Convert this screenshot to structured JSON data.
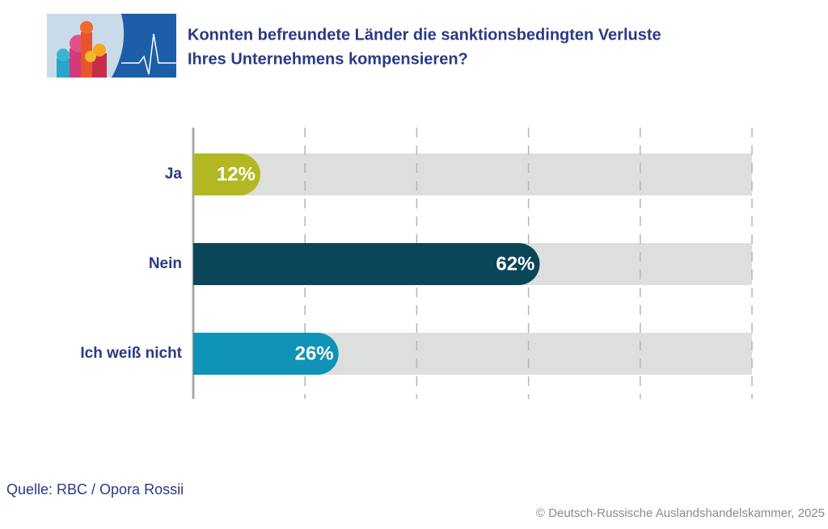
{
  "chart_data": {
    "type": "bar",
    "orientation": "horizontal",
    "title": [
      "Konnten befreundete Länder die sanktionsbedingten Verluste",
      "Ihres Unternehmens kompensieren?"
    ],
    "categories": [
      "Ja",
      "Nein",
      "Ich weiß nicht"
    ],
    "values": [
      12,
      62,
      26
    ],
    "value_labels": [
      "12%",
      "62%",
      "26%"
    ],
    "colors": [
      "#b3b722",
      "#0a4558",
      "#0f93b6"
    ],
    "xlim": [
      0,
      100
    ],
    "xticks": [
      0,
      20,
      40,
      60,
      80,
      100
    ],
    "grid": true,
    "source": "Quelle: RBC / Opora Rossii",
    "copyright": "© Deutsch-Russische Auslandshandelskammer, 2025"
  }
}
